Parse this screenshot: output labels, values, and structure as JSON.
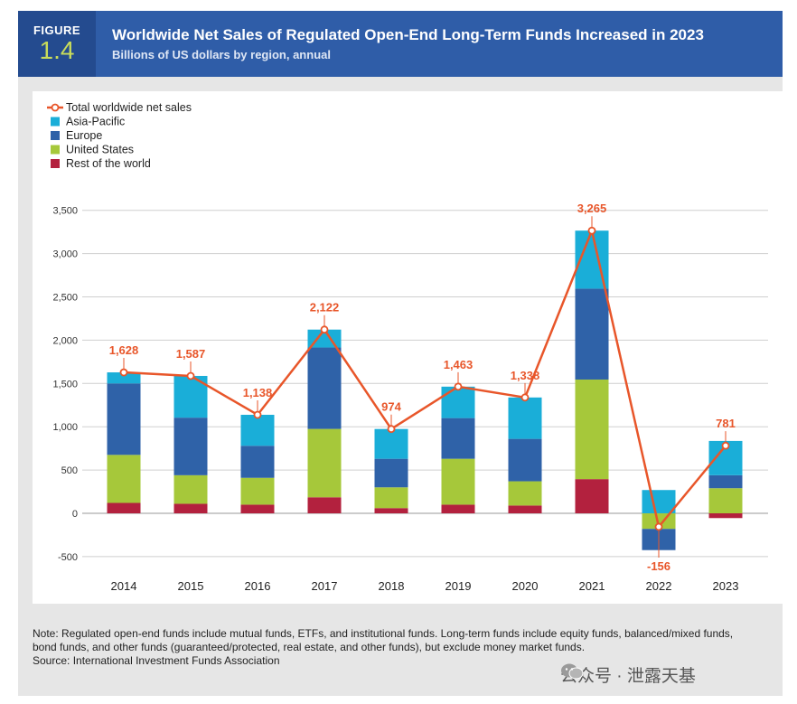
{
  "header": {
    "figure_label": "FIGURE",
    "figure_number": "1.4",
    "title": "Worldwide Net Sales of Regulated Open-End Long-Term Funds Increased in 2023",
    "subtitle": "Billions of US dollars by region, annual"
  },
  "colors": {
    "asia_pacific": "#1aaed8",
    "europe": "#2f62a8",
    "united_states": "#a6c83a",
    "rest_of_world": "#b3213e",
    "total_line": "#e8562a"
  },
  "chart_data": {
    "type": "bar",
    "stacked": true,
    "title": "Worldwide Net Sales of Regulated Open-End Long-Term Funds Increased in 2023",
    "subtitle": "Billions of US dollars by region, annual",
    "xlabel": "",
    "ylabel": "",
    "ylim": [
      -500,
      3500
    ],
    "yticks": [
      -500,
      0,
      500,
      1000,
      1500,
      2000,
      2500,
      3000,
      3500
    ],
    "ytick_labels": [
      "-500",
      "0",
      "500",
      "1,000",
      "1,500",
      "2,000",
      "2,500",
      "3,000",
      "3,500"
    ],
    "grid": true,
    "legend_position": "top-left",
    "categories": [
      "2014",
      "2015",
      "2016",
      "2017",
      "2018",
      "2019",
      "2020",
      "2021",
      "2022",
      "2023"
    ],
    "series": [
      {
        "name": "Rest of the world",
        "color_key": "rest_of_world",
        "values": [
          120,
          110,
          100,
          185,
          60,
          100,
          90,
          395,
          0,
          -55
        ]
      },
      {
        "name": "United States",
        "color_key": "united_states",
        "values": [
          555,
          330,
          310,
          790,
          240,
          530,
          280,
          1150,
          -180,
          290
        ]
      },
      {
        "name": "Europe",
        "color_key": "europe",
        "values": [
          825,
          665,
          370,
          940,
          330,
          470,
          490,
          1050,
          -245,
          150
        ]
      },
      {
        "name": "Asia-Pacific",
        "color_key": "asia_pacific",
        "values": [
          128,
          482,
          358,
          207,
          344,
          363,
          478,
          670,
          269,
          396
        ]
      }
    ],
    "line": {
      "name": "Total worldwide net sales",
      "values": [
        1628,
        1587,
        1138,
        2122,
        974,
        1463,
        1338,
        3265,
        -156,
        781
      ],
      "labels": [
        "1,628",
        "1,587",
        "1,138",
        "2,122",
        "974",
        "1,463",
        "1,338",
        "3,265",
        "-156",
        "781"
      ]
    },
    "legend": [
      "Total worldwide net sales",
      "Asia-Pacific",
      "Europe",
      "United States",
      "Rest of the world"
    ]
  },
  "notes": {
    "note": "Note: Regulated open-end funds include mutual funds, ETFs, and institutional funds. Long-term funds include equity funds, balanced/mixed funds, bond funds, and other funds (guaranteed/protected, real estate, and other funds), but exclude money market funds.",
    "source": "Source: International Investment Funds Association"
  },
  "watermark": {
    "text": "公众号 · 泄露天基",
    "icon": "wechat-icon"
  }
}
